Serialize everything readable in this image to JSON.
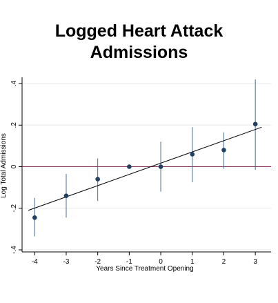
{
  "chart_data": {
    "type": "scatter",
    "title": [
      "Logged Heart Attack",
      "Admissions"
    ],
    "xlabel": "Years Since Treatment Opening",
    "ylabel": "Log Total Admissions",
    "x_ticks": [
      -4,
      -3,
      -2,
      -1,
      0,
      1,
      2,
      3
    ],
    "x_tick_labels": [
      "-4",
      "-3",
      "-2",
      "-1",
      "0",
      "1",
      "2",
      "3"
    ],
    "y_ticks": [
      -0.4,
      -0.2,
      0,
      0.2,
      0.4
    ],
    "y_tick_labels": [
      "-.4",
      "-.2",
      "0",
      ".2",
      ".4"
    ],
    "xlim": [
      -4.4,
      3.5
    ],
    "ylim": [
      -0.41,
      0.43
    ],
    "grid": true,
    "points": [
      {
        "x": -4,
        "y": -0.245,
        "ci": [
          -0.335,
          -0.15
        ]
      },
      {
        "x": -3,
        "y": -0.14,
        "ci": [
          -0.245,
          -0.035
        ]
      },
      {
        "x": -2,
        "y": -0.06,
        "ci": [
          -0.165,
          0.04
        ]
      },
      {
        "x": -1,
        "y": 0.0
      },
      {
        "x": 0,
        "y": 0.0,
        "ci": [
          -0.12,
          0.12
        ]
      },
      {
        "x": 1,
        "y": 0.06,
        "ci": [
          -0.075,
          0.19
        ]
      },
      {
        "x": 2,
        "y": 0.08,
        "ci": [
          -0.01,
          0.165
        ]
      },
      {
        "x": 3,
        "y": 0.205,
        "ci": [
          -0.015,
          0.42
        ]
      }
    ],
    "fit_line": {
      "x": [
        -4.2,
        3.2
      ],
      "y": [
        -0.21,
        0.19
      ]
    },
    "reference_line": {
      "y": 0
    },
    "colors": {
      "points": "#1f3f63",
      "ci": "#4a6a8a",
      "fit": "#000000",
      "reference": "#8a2a6a",
      "grid": "#e8e8e8"
    }
  }
}
